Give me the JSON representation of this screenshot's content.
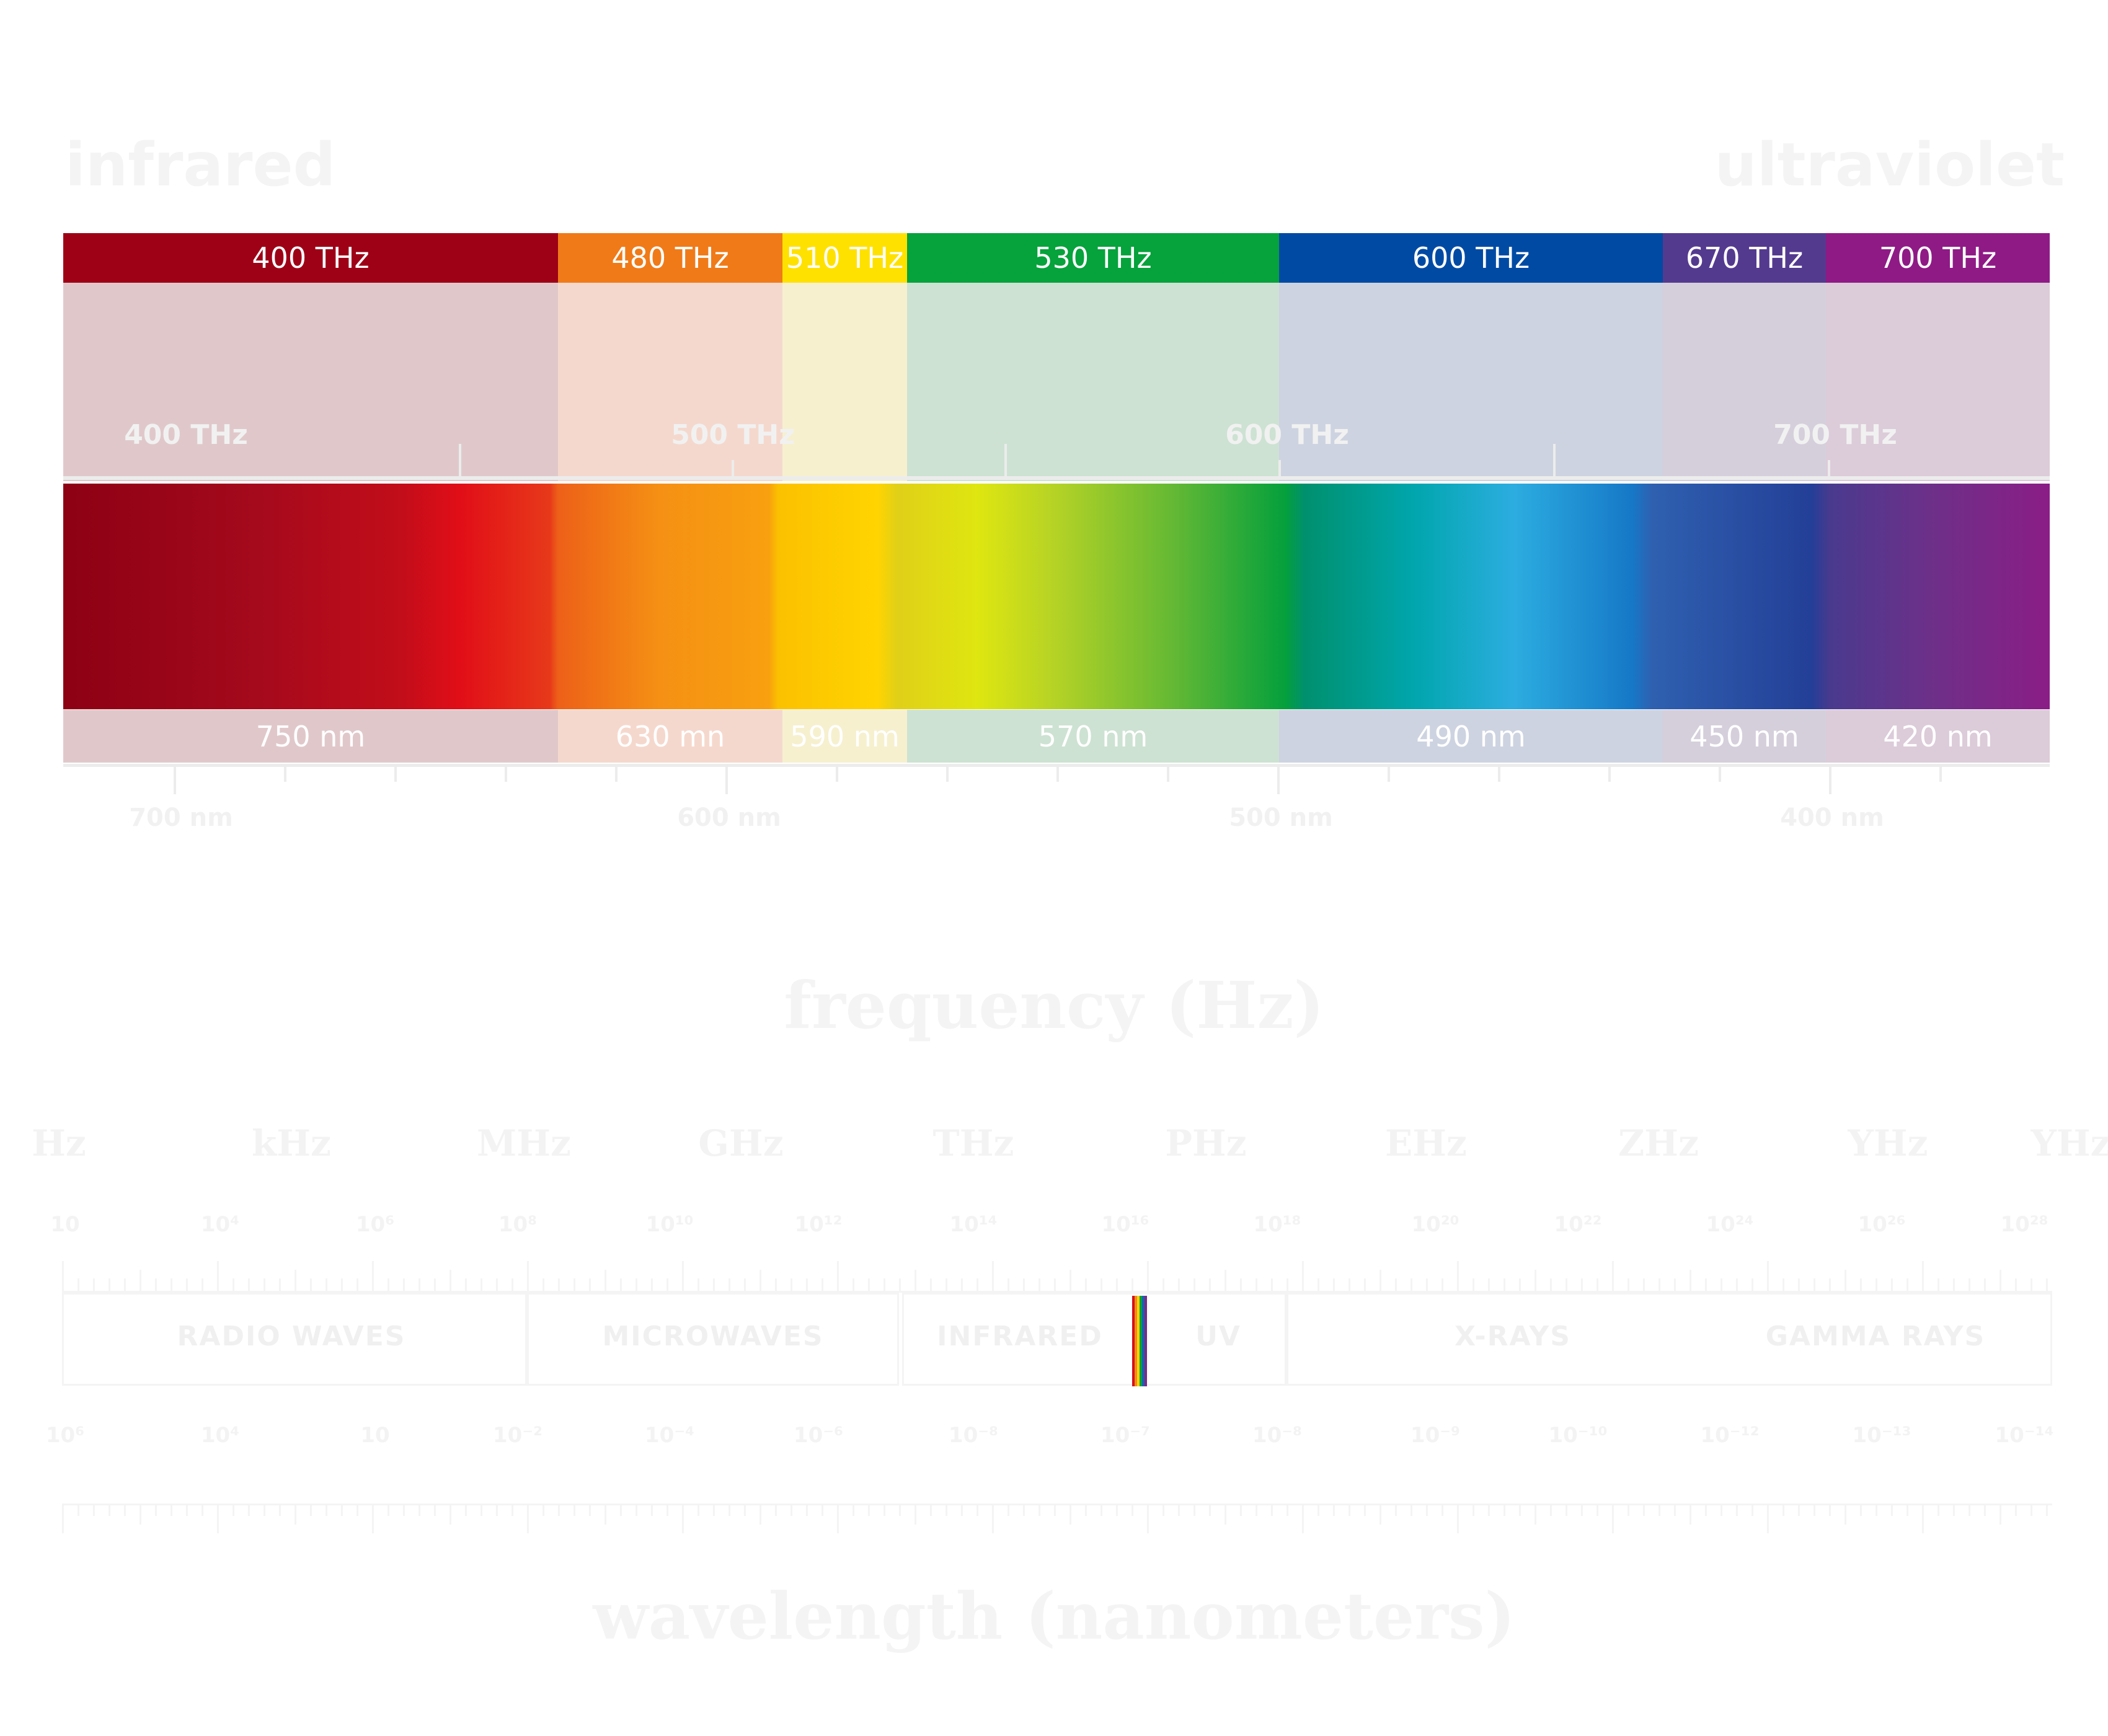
{
  "titles": {
    "infrared": "infrared",
    "ultraviolet": "ultraviolet"
  },
  "bands": [
    {
      "frequency": "400 THz",
      "wavelength": "750 nm",
      "color": "#9e0016",
      "tint": "#e0c8ca"
    },
    {
      "frequency": "480 THz",
      "wavelength": "630 mn",
      "color": "#f07a18",
      "tint": "#f5d8cd"
    },
    {
      "frequency": "510 THz",
      "wavelength": "590 nm",
      "color": "#ffe100",
      "tint": "#f6f0cf"
    },
    {
      "frequency": "530 THz",
      "wavelength": "570 nm",
      "color": "#06a23c",
      "tint": "#cde2d2"
    },
    {
      "frequency": "600 THz",
      "wavelength": "490 nm",
      "color": "#004aa4",
      "tint": "#cdd3e0"
    },
    {
      "frequency": "670 THz",
      "wavelength": "450 nm",
      "color": "#543a8f",
      "tint": "#d5cfdc"
    },
    {
      "frequency": "700 THz",
      "wavelength": "420 nm",
      "color": "#8f1a86",
      "tint": "#dccbd9"
    }
  ],
  "visible_scale": {
    "frequency_labels": [
      "400 THz",
      "500 THz",
      "600 THz",
      "700 THz"
    ],
    "wavelength_labels": [
      "700 nm",
      "600 nm",
      "500 nm",
      "400 nm"
    ]
  },
  "em_spectrum": {
    "frequency_title": "frequency (Hz)",
    "frequency_units": [
      "Hz",
      "kHz",
      "MHz",
      "GHz",
      "THz",
      "PHz",
      "EHz",
      "ZHz",
      "YHz",
      "YHz"
    ],
    "frequency_exponents": [
      "10",
      "10⁴",
      "10⁶",
      "10⁸",
      "10¹⁰",
      "10¹²",
      "10¹⁴",
      "10¹⁶",
      "10¹⁸",
      "10²⁰",
      "10²²",
      "10²⁴",
      "10²⁶",
      "10²⁸"
    ],
    "bands": [
      "RADIO WAVES",
      "MICROWAVES",
      "INFRARED",
      "UV",
      "X-RAYS",
      "GAMMA RAYS"
    ],
    "wavelength_exponents": [
      "10⁶",
      "10⁴",
      "10",
      "10⁻²",
      "10⁻⁴",
      "10⁻⁶",
      "10⁻⁸",
      "10⁻⁷",
      "10⁻⁸",
      "10⁻⁹",
      "10⁻¹⁰",
      "10⁻¹²",
      "10⁻¹³",
      "10⁻¹⁴"
    ],
    "wavelength_title": "wavelength (nanometers)",
    "visible_strip_colors": [
      "#d50f1c",
      "#f2891a",
      "#ffd400",
      "#07a23c",
      "#1c5fb0",
      "#7a2a8a"
    ]
  }
}
